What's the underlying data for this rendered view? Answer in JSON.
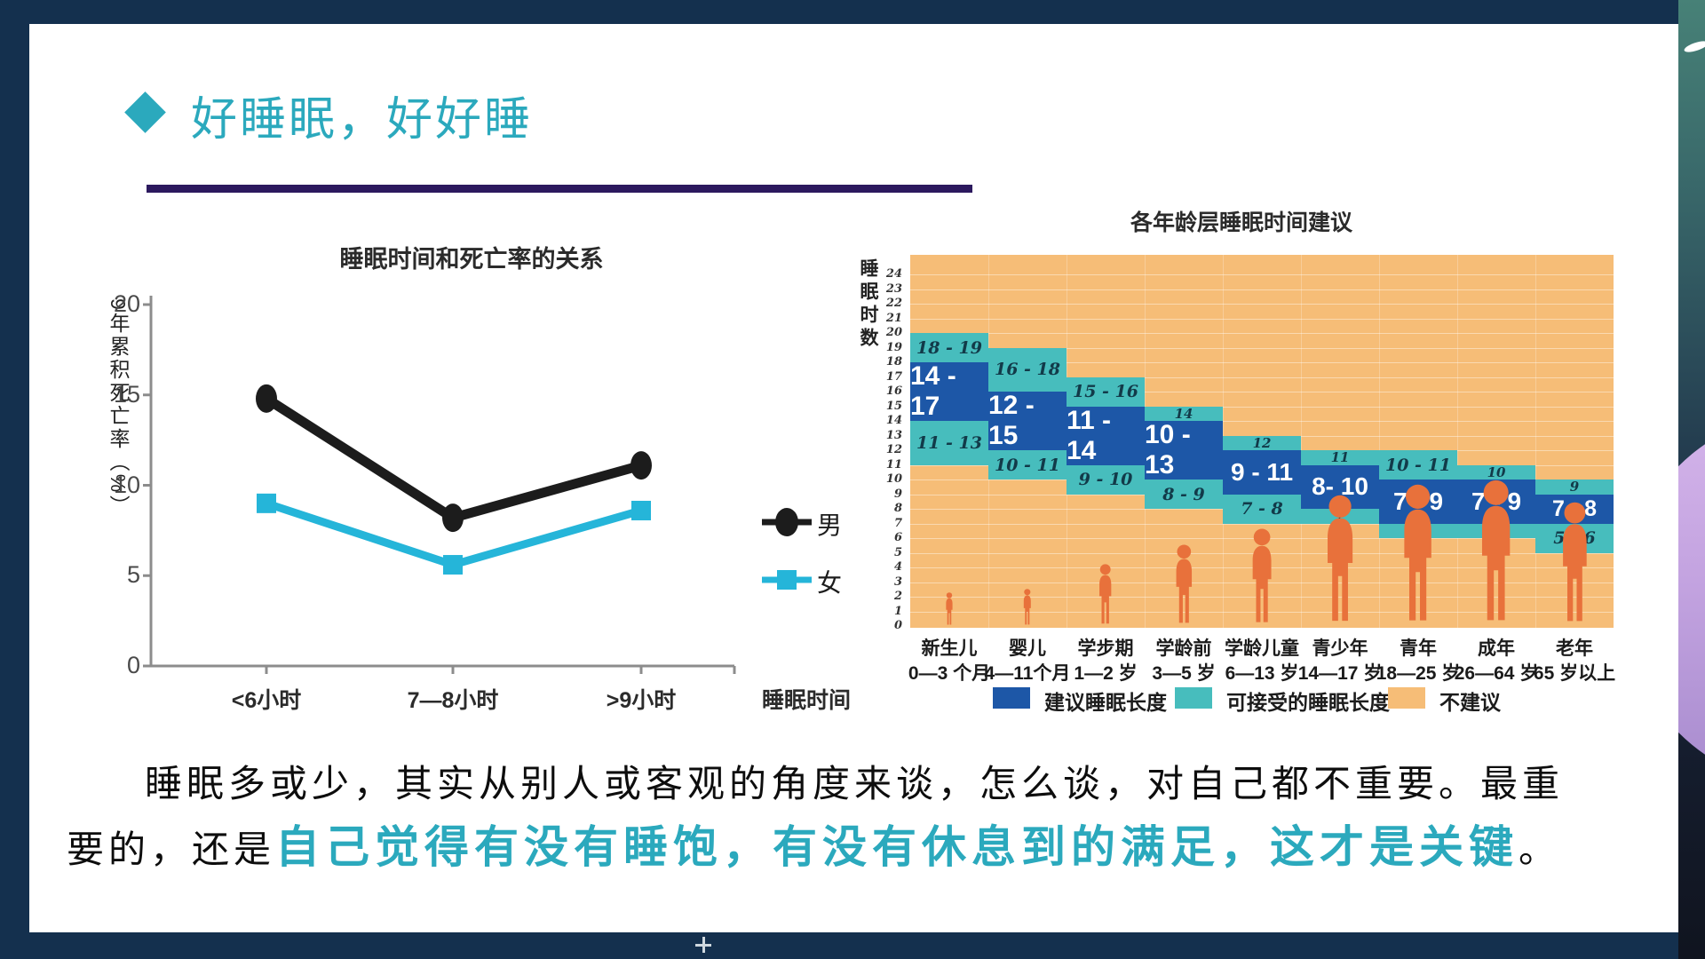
{
  "slide": {
    "title": "好睡眠，好好睡",
    "accent_color": "#2ba9bd",
    "underline_color": "#2c195e",
    "frame_color": "#14304e"
  },
  "chart_data": [
    {
      "type": "line",
      "title": "睡眠时间和死亡率的关系",
      "xlabel": "睡眠时间",
      "ylabel": "9年累积死亡率（%）",
      "categories": [
        "<6小时",
        "7—8小时",
        ">9小时"
      ],
      "series": [
        {
          "name": "男",
          "color": "#1c1c1c",
          "marker": "ellipse",
          "values": [
            14.8,
            8.2,
            11.1
          ]
        },
        {
          "name": "女",
          "color": "#25b5d9",
          "marker": "square",
          "values": [
            9.0,
            5.6,
            8.6
          ]
        }
      ],
      "ylim": [
        0,
        20
      ],
      "yticks": [
        0,
        5,
        10,
        15,
        20
      ],
      "grid": false,
      "legend_position": "right"
    },
    {
      "type": "stacked-range-bar",
      "title": "各年龄层睡眠时间建议",
      "ylabel": "睡眠时数",
      "ylim": [
        0,
        24
      ],
      "hour_tick_step": 1,
      "colors": {
        "recommended": "#1d57a7",
        "acceptable": "#47bdbd",
        "not_recommended": "#f6bd77",
        "figure": "#e8713b"
      },
      "groups": [
        {
          "name": "新生儿",
          "age": "0—3 个月",
          "acceptable_upper": {
            "from": 18,
            "to": 20,
            "label": "18 - 19"
          },
          "recommended": {
            "from": 14,
            "to": 18,
            "label": "14 - 17"
          },
          "acceptable_lower": {
            "from": 11,
            "to": 14,
            "label": "11 - 13"
          },
          "figure_scale": 38
        },
        {
          "name": "婴儿",
          "age": "4—11个月",
          "acceptable_upper": {
            "from": 16,
            "to": 19,
            "label": "16 - 18"
          },
          "recommended": {
            "from": 12,
            "to": 16,
            "label": "12 - 15"
          },
          "acceptable_lower": {
            "from": 10,
            "to": 12,
            "label": "10 - 11"
          },
          "figure_scale": 42
        },
        {
          "name": "学步期",
          "age": "1—2 岁",
          "acceptable_upper": {
            "from": 15,
            "to": 17,
            "label": "15 - 16"
          },
          "recommended": {
            "from": 11,
            "to": 15,
            "label": "11 - 14"
          },
          "acceptable_lower": {
            "from": 9,
            "to": 11,
            "label": "9 - 10"
          },
          "figure_scale": 70
        },
        {
          "name": "学龄前",
          "age": "3—5 岁",
          "acceptable_upper": {
            "from": 14,
            "to": 15,
            "label": "14"
          },
          "recommended": {
            "from": 10,
            "to": 14,
            "label": "10 - 13"
          },
          "acceptable_lower": {
            "from": 8,
            "to": 10,
            "label": "8 - 9"
          },
          "figure_scale": 92
        },
        {
          "name": "学龄儿童",
          "age": "6—13 岁",
          "acceptable_upper": {
            "from": 12,
            "to": 13,
            "label": "12"
          },
          "recommended": {
            "from": 9,
            "to": 12,
            "label": "9 - 11"
          },
          "acceptable_lower": {
            "from": 7,
            "to": 9,
            "label": "7 - 8"
          },
          "figure_scale": 110
        },
        {
          "name": "青少年",
          "age": "14—17 岁",
          "acceptable_upper": {
            "from": 11,
            "to": 12,
            "label": "11"
          },
          "recommended": {
            "from": 8,
            "to": 11,
            "label": "8- 10"
          },
          "acceptable_lower": {
            "from": 7,
            "to": 8,
            "label": "7"
          },
          "figure_scale": 148
        },
        {
          "name": "青年",
          "age": "18—25 岁",
          "acceptable_upper": {
            "from": 10,
            "to": 12,
            "label": "10 - 11"
          },
          "recommended": {
            "from": 7,
            "to": 10,
            "label": "7 - 9"
          },
          "acceptable_lower": {
            "from": 6,
            "to": 7,
            "label": "6"
          },
          "figure_scale": 160
        },
        {
          "name": "成年",
          "age": "26—64 岁",
          "acceptable_upper": {
            "from": 10,
            "to": 11,
            "label": "10"
          },
          "recommended": {
            "from": 7,
            "to": 10,
            "label": "7 - 9"
          },
          "acceptable_lower": {
            "from": 6,
            "to": 7,
            "label": "6"
          },
          "figure_scale": 165
        },
        {
          "name": "老年",
          "age": "65 岁以上",
          "acceptable_upper": {
            "from": 9,
            "to": 10,
            "label": "9"
          },
          "recommended": {
            "from": 7,
            "to": 9,
            "label": "7 - 8"
          },
          "acceptable_lower": {
            "from": 5,
            "to": 7,
            "label": "5 - 6"
          },
          "figure_scale": 140
        }
      ],
      "legend": [
        {
          "label": "建议睡眠长度",
          "color": "#1d57a7"
        },
        {
          "label": "可接受的睡眠长度",
          "color": "#47bdbd"
        },
        {
          "label": "不建议",
          "color": "#f6bd77"
        }
      ],
      "legend_position": "bottom"
    }
  ],
  "paragraph": {
    "line1": "睡眠多或少，其实从别人或客观的角度来谈，怎么谈，对自己都不重要。最重",
    "line2_prefix": "要的，还是",
    "line2_highlight": "自己觉得有没有睡饱，有没有休息到的满足，这才是关键",
    "line2_suffix": "。",
    "highlight_color": "#2ba9bd"
  }
}
